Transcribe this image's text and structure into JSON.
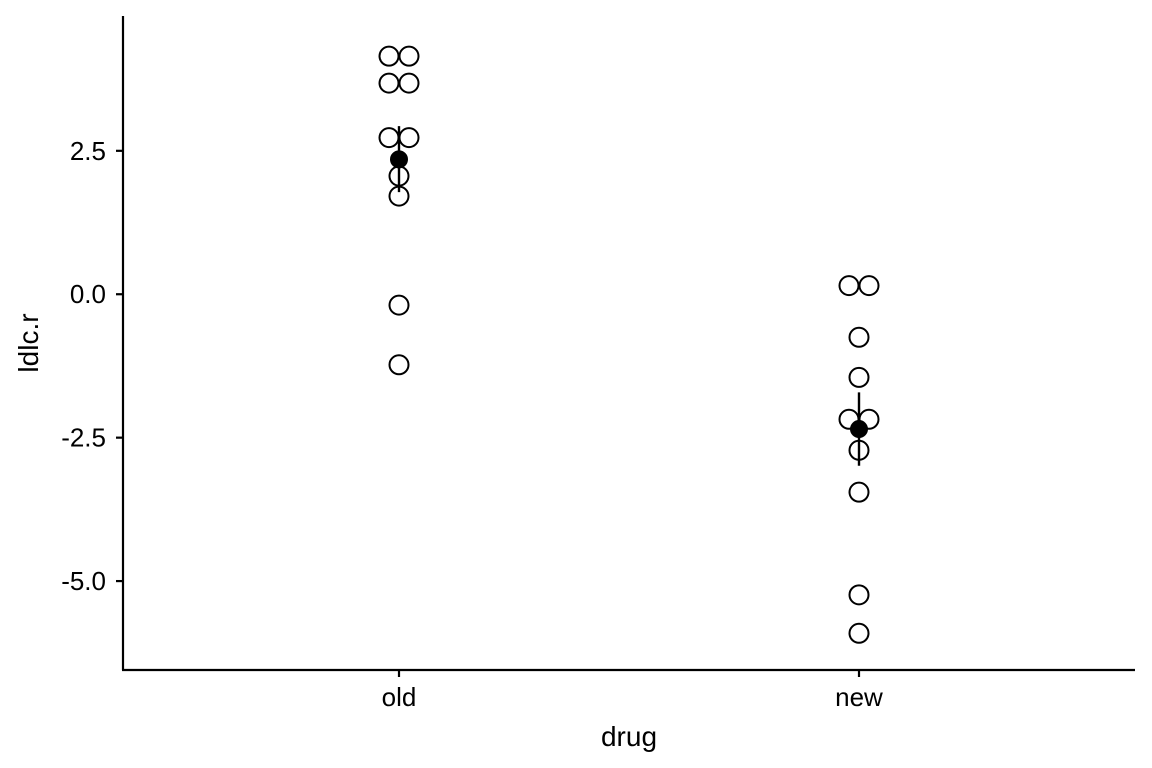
{
  "chart_data": {
    "type": "scatter",
    "xlabel": "drug",
    "ylabel": "ldlc.r",
    "categories": [
      "old",
      "new"
    ],
    "ylim": [
      -6.55,
      4.85
    ],
    "yticks": [
      2.5,
      0.0,
      -2.5,
      -5.0
    ],
    "ytick_labels": [
      "2.5",
      "0.0",
      "-2.5",
      "-5.0"
    ],
    "grid": false,
    "legend": "none",
    "observations": [
      {
        "category": "old",
        "values": [
          4.15,
          4.15,
          3.68,
          3.68,
          2.73,
          2.73,
          2.06,
          1.71,
          -0.19,
          -1.23
        ]
      },
      {
        "category": "new",
        "values": [
          0.15,
          0.15,
          -0.75,
          -1.45,
          -2.18,
          -2.18,
          -2.72,
          -3.45,
          -5.24,
          -5.91
        ]
      }
    ],
    "summary": [
      {
        "category": "old",
        "mean": 2.35,
        "lower": 1.78,
        "upper": 2.93
      },
      {
        "category": "new",
        "mean": -2.35,
        "lower": -2.99,
        "upper": -1.71
      }
    ]
  }
}
